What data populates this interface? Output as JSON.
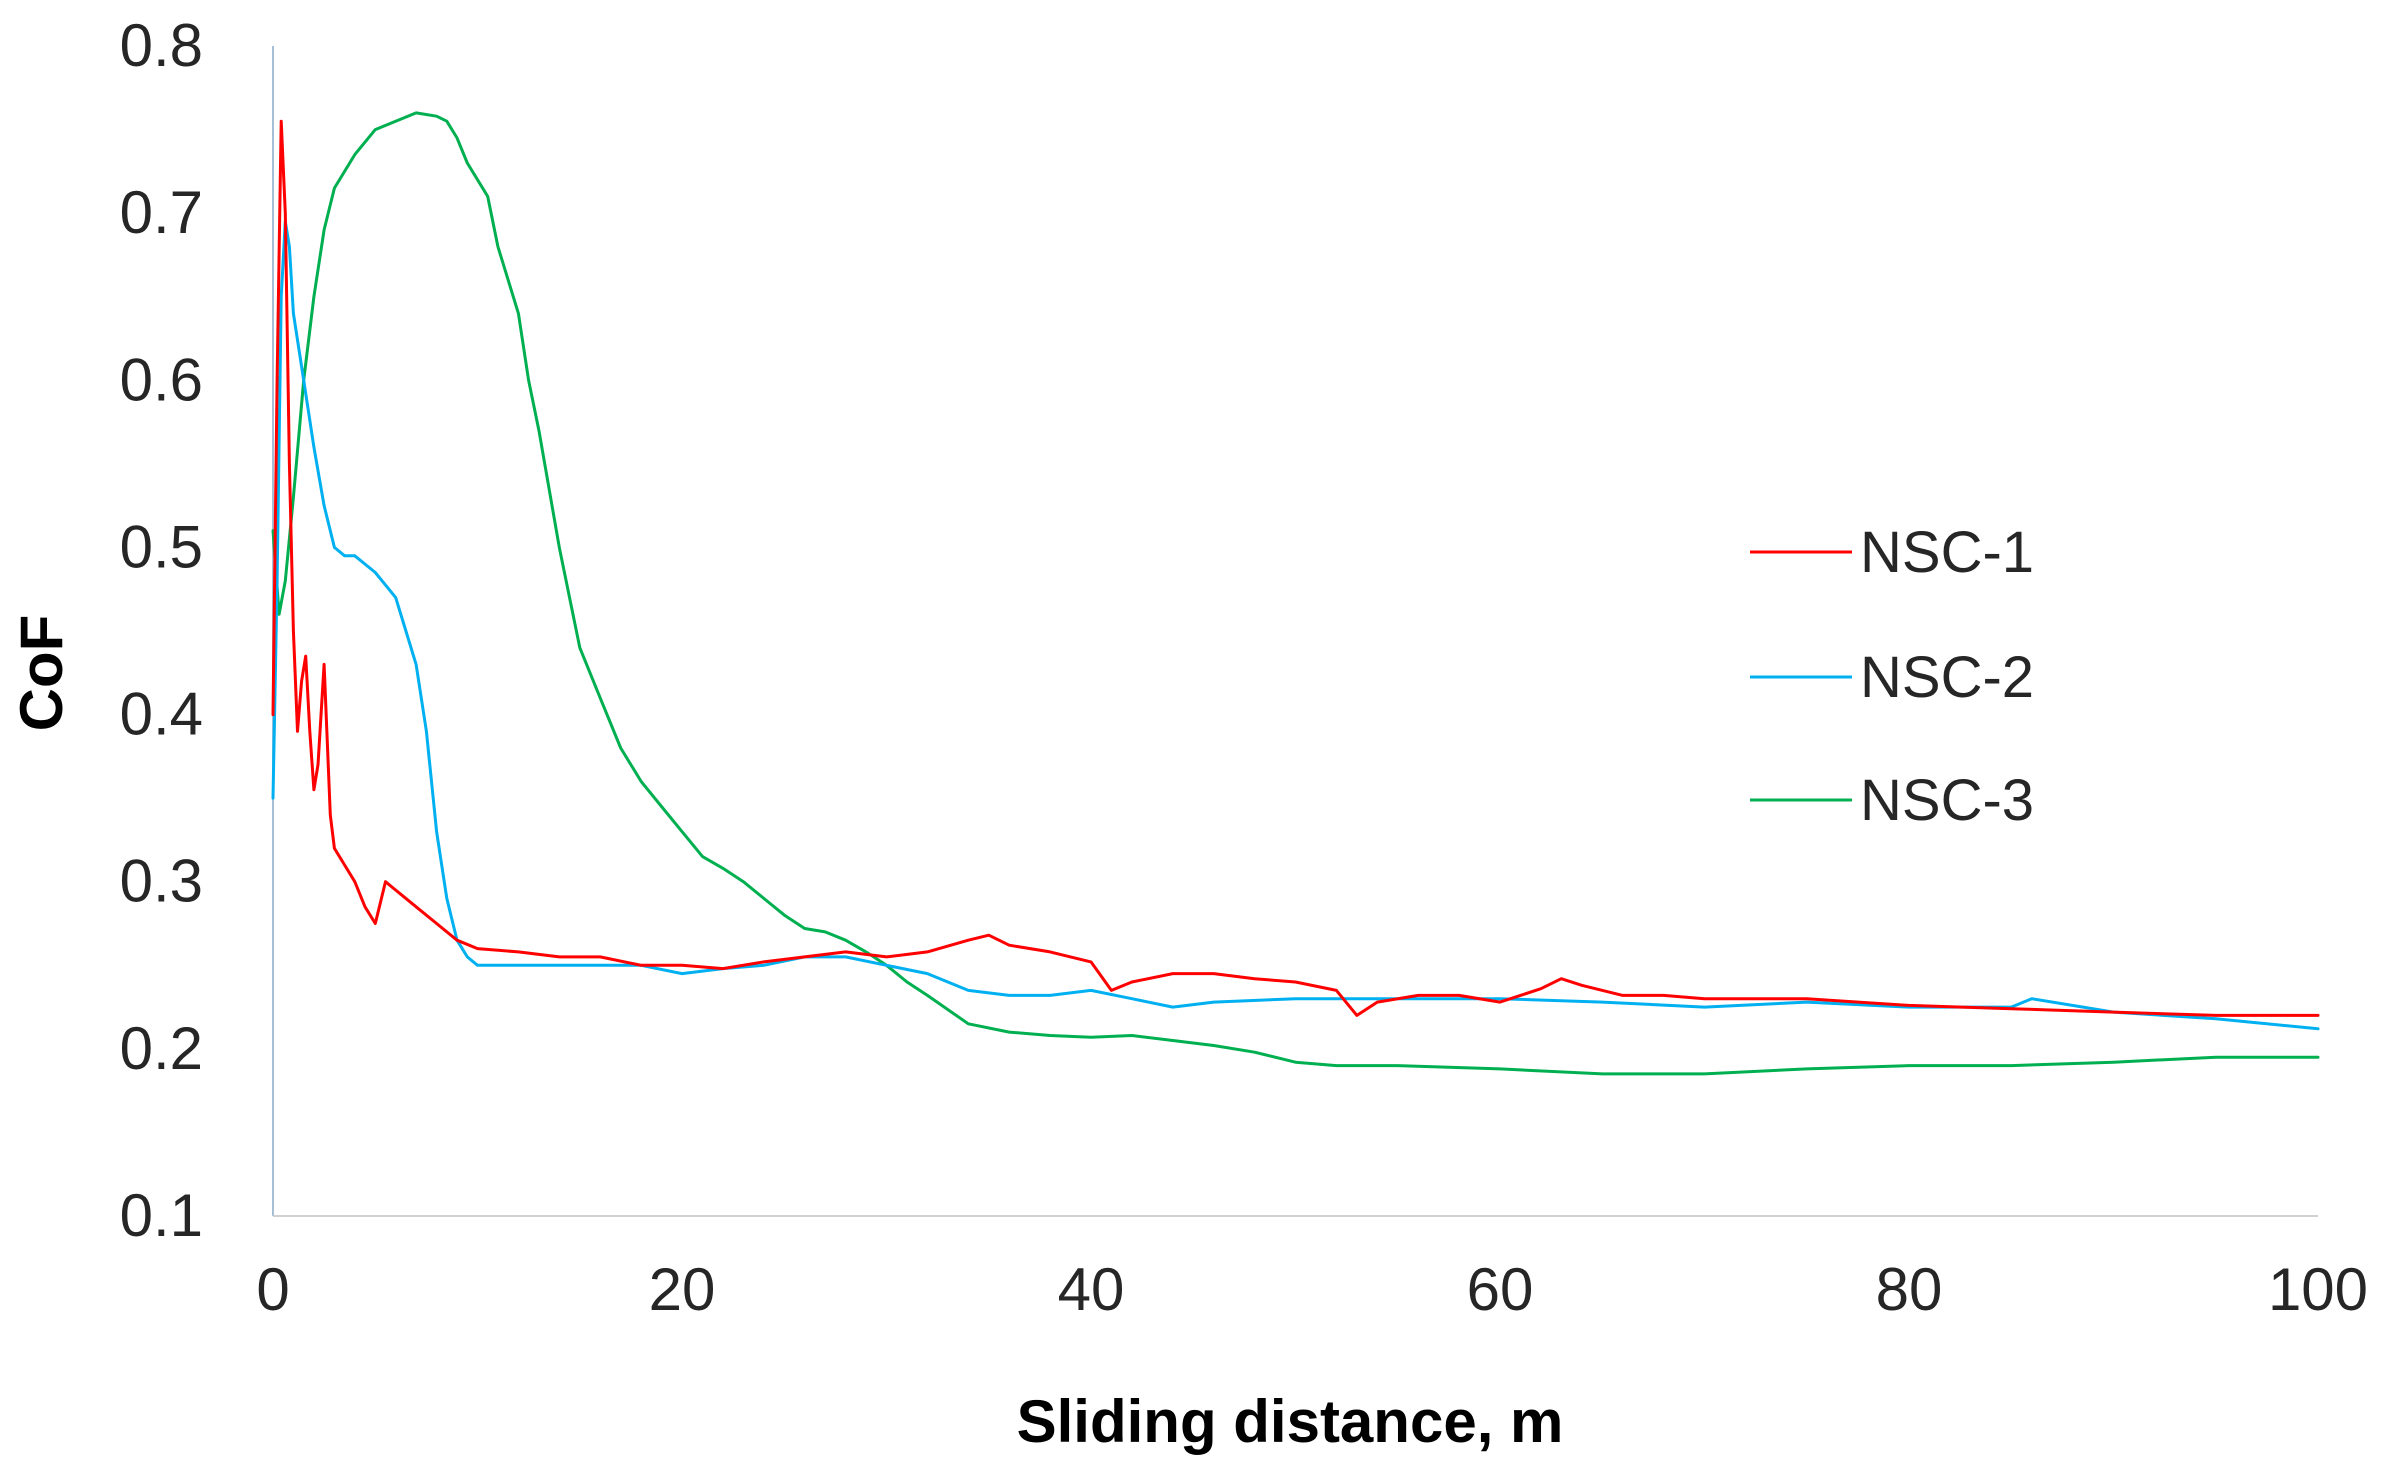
{
  "chart_data": {
    "type": "line",
    "title": "",
    "xlabel": "Sliding distance, m",
    "ylabel": "CoF",
    "xlim": [
      0,
      100
    ],
    "ylim": [
      0.1,
      0.8
    ],
    "xticks": [
      0,
      20,
      40,
      60,
      80,
      100
    ],
    "yticks": [
      0.1,
      0.2,
      0.3,
      0.4,
      0.5,
      0.6,
      0.7,
      0.8
    ],
    "xtick_labels": [
      "0",
      "20",
      "40",
      "60",
      "80",
      "100"
    ],
    "ytick_labels": [
      "0.1",
      "0.2",
      "0.3",
      "0.4",
      "0.5",
      "0.6",
      "0.7",
      "0.8"
    ],
    "grid": false,
    "legend_position": "right",
    "series": [
      {
        "name": "NSC-1",
        "color": "#ff0000",
        "x": [
          0,
          0.2,
          0.4,
          0.6,
          0.8,
          1.0,
          1.2,
          1.4,
          1.6,
          1.8,
          2.0,
          2.2,
          2.5,
          2.8,
          3.0,
          3.5,
          4,
          4.5,
          5,
          5.5,
          6,
          7,
          8,
          9,
          10,
          12,
          14,
          16,
          18,
          20,
          22,
          24,
          26,
          28,
          30,
          32,
          34,
          35,
          36,
          38,
          40,
          41,
          42,
          44,
          46,
          48,
          50,
          52,
          53,
          54,
          56,
          58,
          60,
          62,
          63,
          64,
          66,
          68,
          70,
          72,
          75,
          80,
          85,
          90,
          95,
          100
        ],
        "y": [
          0.4,
          0.6,
          0.755,
          0.7,
          0.55,
          0.45,
          0.39,
          0.42,
          0.435,
          0.39,
          0.355,
          0.37,
          0.43,
          0.34,
          0.32,
          0.31,
          0.3,
          0.285,
          0.275,
          0.3,
          0.295,
          0.285,
          0.275,
          0.265,
          0.26,
          0.258,
          0.255,
          0.255,
          0.25,
          0.25,
          0.248,
          0.252,
          0.255,
          0.258,
          0.255,
          0.258,
          0.265,
          0.268,
          0.262,
          0.258,
          0.252,
          0.235,
          0.24,
          0.245,
          0.245,
          0.242,
          0.24,
          0.235,
          0.22,
          0.228,
          0.232,
          0.232,
          0.228,
          0.236,
          0.242,
          0.238,
          0.232,
          0.232,
          0.23,
          0.23,
          0.23,
          0.226,
          0.224,
          0.222,
          0.22,
          0.22
        ]
      },
      {
        "name": "NSC-2",
        "color": "#00b0f0",
        "x": [
          0,
          0.2,
          0.4,
          0.6,
          0.8,
          1.0,
          1.5,
          2,
          2.5,
          3,
          3.5,
          4,
          5,
          6,
          6.5,
          7,
          7.5,
          8,
          8.5,
          9,
          9.5,
          10,
          11,
          12,
          14,
          16,
          18,
          20,
          22,
          24,
          26,
          28,
          30,
          32,
          34,
          36,
          38,
          40,
          42,
          44,
          46,
          50,
          55,
          60,
          65,
          70,
          75,
          80,
          85,
          86,
          90,
          95,
          100
        ],
        "y": [
          0.35,
          0.48,
          0.65,
          0.695,
          0.68,
          0.64,
          0.6,
          0.56,
          0.525,
          0.5,
          0.495,
          0.495,
          0.485,
          0.47,
          0.45,
          0.43,
          0.39,
          0.33,
          0.29,
          0.265,
          0.255,
          0.25,
          0.25,
          0.25,
          0.25,
          0.25,
          0.25,
          0.245,
          0.248,
          0.25,
          0.255,
          0.255,
          0.25,
          0.245,
          0.235,
          0.232,
          0.232,
          0.235,
          0.23,
          0.225,
          0.228,
          0.23,
          0.23,
          0.23,
          0.228,
          0.225,
          0.228,
          0.225,
          0.225,
          0.23,
          0.222,
          0.218,
          0.212
        ]
      },
      {
        "name": "NSC-3",
        "color": "#00b050",
        "x": [
          0,
          0.3,
          0.6,
          1,
          1.5,
          2,
          2.5,
          3,
          4,
          5,
          6,
          7,
          8,
          8.5,
          9,
          9.5,
          10,
          10.5,
          11,
          12,
          12.5,
          13,
          14,
          15,
          16,
          17,
          18,
          19,
          20,
          21,
          22,
          23,
          24,
          25,
          26,
          27,
          28,
          29,
          30,
          31,
          32,
          34,
          36,
          38,
          40,
          42,
          44,
          46,
          48,
          50,
          52,
          55,
          60,
          65,
          70,
          75,
          80,
          85,
          90,
          95,
          100
        ],
        "y": [
          0.51,
          0.46,
          0.48,
          0.53,
          0.6,
          0.65,
          0.69,
          0.715,
          0.735,
          0.75,
          0.755,
          0.76,
          0.758,
          0.755,
          0.745,
          0.73,
          0.72,
          0.71,
          0.68,
          0.64,
          0.6,
          0.57,
          0.5,
          0.44,
          0.41,
          0.38,
          0.36,
          0.345,
          0.33,
          0.315,
          0.308,
          0.3,
          0.29,
          0.28,
          0.272,
          0.27,
          0.265,
          0.258,
          0.25,
          0.24,
          0.232,
          0.215,
          0.21,
          0.208,
          0.207,
          0.208,
          0.205,
          0.202,
          0.198,
          0.192,
          0.19,
          0.19,
          0.188,
          0.185,
          0.185,
          0.188,
          0.19,
          0.19,
          0.192,
          0.195,
          0.195
        ]
      }
    ]
  }
}
